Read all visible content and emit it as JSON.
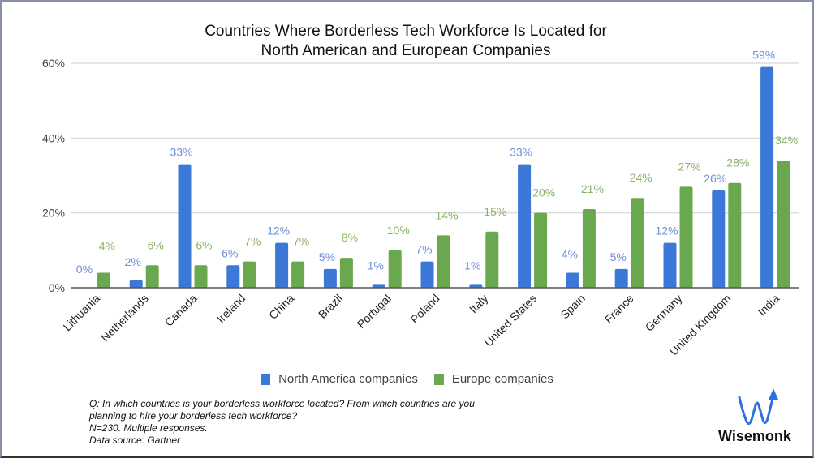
{
  "header": {
    "title_line1": "Countries Where Borderless Tech Workforce Is Located for",
    "title_line2": "North American and European Companies"
  },
  "legend": {
    "items": [
      {
        "label": "North America companies",
        "color": "#3b78d8"
      },
      {
        "label": "Europe companies",
        "color": "#6aa84f"
      }
    ]
  },
  "notes": {
    "line1": "Q: In which countries is your borderless workforce located? From which countries are you",
    "line2": "planning to hire your borderless tech workforce?",
    "line3": "N=230. Multiple responses.",
    "line4": "Data source: Gartner"
  },
  "brand": {
    "name": "Wisemonk",
    "logo_color": "#2f6fe0"
  },
  "colors": {
    "north_america": "#3b78d8",
    "europe": "#6aa84f",
    "north_america_label": "#6f8fd6",
    "europe_label": "#8bb36a",
    "gridline": "#d6d6d6",
    "axis": "#555555"
  },
  "chart_data": {
    "type": "bar",
    "title": "Countries Where Borderless Tech Workforce Is Located for North American and European Companies",
    "xlabel": "",
    "ylabel": "",
    "ylim": [
      0,
      60
    ],
    "yticks": [
      "0%",
      "20%",
      "40%",
      "60%"
    ],
    "grid": true,
    "legend_position": "bottom",
    "categories": [
      "Lithuania",
      "Netherlands",
      "Canada",
      "Ireland",
      "China",
      "Brazil",
      "Portugal",
      "Poland",
      "Italy",
      "United States",
      "Spain",
      "France",
      "Germany",
      "United Kingdom",
      "India"
    ],
    "series": [
      {
        "name": "North America companies",
        "color": "#3b78d8",
        "values": [
          0,
          2,
          33,
          6,
          12,
          5,
          1,
          7,
          1,
          33,
          4,
          5,
          12,
          26,
          59
        ]
      },
      {
        "name": "Europe companies",
        "color": "#6aa84f",
        "values": [
          4,
          6,
          6,
          7,
          7,
          8,
          10,
          14,
          15,
          20,
          21,
          24,
          27,
          28,
          34
        ]
      }
    ],
    "value_format": "{v}%"
  }
}
